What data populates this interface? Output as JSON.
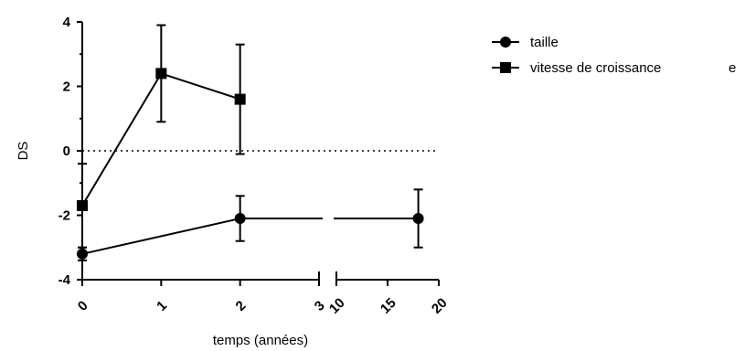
{
  "chart_data": {
    "type": "line",
    "xlabel": "temps (années)",
    "ylabel": "DS",
    "ylim": [
      -4,
      4
    ],
    "yticks": [
      "4",
      "2",
      "0",
      "-2",
      "-4"
    ],
    "x_segments": [
      {
        "range": [
          0,
          3
        ],
        "ticks": [
          "0",
          "1",
          "2",
          "3"
        ]
      },
      {
        "range": [
          10,
          20
        ],
        "ticks": [
          "10",
          "15",
          "20"
        ]
      }
    ],
    "reference_line": {
      "y": 0,
      "style": "dotted"
    },
    "series": [
      {
        "name": "taille",
        "marker": "circle",
        "points": [
          {
            "x": 0,
            "y": -3.2,
            "err": 0.2
          },
          {
            "x": 2,
            "y": -2.1,
            "err": 0.7
          },
          {
            "x": 18,
            "y": -2.1,
            "err": 0.9
          }
        ]
      },
      {
        "name": "vitesse de croissance",
        "marker": "square",
        "points": [
          {
            "x": 0,
            "y": -1.7,
            "err": 1.3
          },
          {
            "x": 1,
            "y": 2.4,
            "err": 1.5
          },
          {
            "x": 2,
            "y": 1.6,
            "err": 1.7
          }
        ]
      }
    ],
    "legend": {
      "position": "top-right",
      "items": [
        {
          "label": "taille",
          "marker": "circle"
        },
        {
          "label": "vitesse de croissance",
          "marker": "square"
        }
      ],
      "clipped_text": "е"
    }
  }
}
